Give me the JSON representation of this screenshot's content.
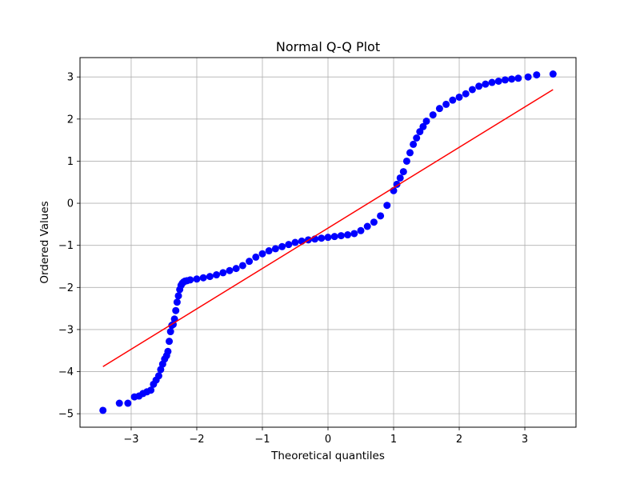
{
  "chart_data": {
    "type": "scatter",
    "title": "Normal Q-Q Plot",
    "xlabel": "Theoretical quantiles",
    "ylabel": "Ordered Values",
    "xlim": [
      -3.78,
      3.78
    ],
    "ylim": [
      -5.32,
      3.46
    ],
    "xticks": [
      -3,
      -2,
      -1,
      0,
      1,
      2,
      3
    ],
    "xtick_labels": [
      "−3",
      "−2",
      "−1",
      "0",
      "1",
      "2",
      "3"
    ],
    "yticks": [
      -5,
      -4,
      -3,
      -2,
      -1,
      0,
      1,
      2,
      3
    ],
    "ytick_labels": [
      "−5",
      "−4",
      "−3",
      "−2",
      "−1",
      "0",
      "1",
      "2",
      "3"
    ],
    "grid": true,
    "series": [
      {
        "kind": "points",
        "color": "#0000ff",
        "x": [
          -3.43,
          -3.18,
          -3.05,
          -2.95,
          -2.88,
          -2.82,
          -2.76,
          -2.7,
          -2.66,
          -2.62,
          -2.58,
          -2.55,
          -2.52,
          -2.49,
          -2.46,
          -2.44,
          -2.42,
          -2.4,
          -2.38,
          -2.36,
          -2.34,
          -2.32,
          -2.3,
          -2.28,
          -2.26,
          -2.24,
          -2.22,
          -2.2,
          -2.18,
          -2.15,
          -2.1,
          -2.0,
          -1.9,
          -1.8,
          -1.7,
          -1.6,
          -1.5,
          -1.4,
          -1.3,
          -1.2,
          -1.1,
          -1.0,
          -0.9,
          -0.8,
          -0.7,
          -0.6,
          -0.5,
          -0.4,
          -0.3,
          -0.2,
          -0.1,
          0.0,
          0.1,
          0.2,
          0.3,
          0.4,
          0.5,
          0.6,
          0.7,
          0.8,
          0.9,
          1.0,
          1.05,
          1.1,
          1.15,
          1.2,
          1.25,
          1.3,
          1.35,
          1.4,
          1.45,
          1.5,
          1.6,
          1.7,
          1.8,
          1.9,
          2.0,
          2.1,
          2.2,
          2.3,
          2.4,
          2.5,
          2.6,
          2.7,
          2.8,
          2.9,
          3.05,
          3.18,
          3.43
        ],
        "y": [
          -4.92,
          -4.75,
          -4.75,
          -4.6,
          -4.58,
          -4.52,
          -4.48,
          -4.44,
          -4.3,
          -4.2,
          -4.1,
          -3.95,
          -3.82,
          -3.7,
          -3.62,
          -3.52,
          -3.28,
          -3.05,
          -2.9,
          -2.88,
          -2.75,
          -2.55,
          -2.35,
          -2.2,
          -2.05,
          -1.95,
          -1.9,
          -1.87,
          -1.85,
          -1.84,
          -1.82,
          -1.8,
          -1.77,
          -1.74,
          -1.7,
          -1.65,
          -1.6,
          -1.55,
          -1.48,
          -1.38,
          -1.28,
          -1.2,
          -1.13,
          -1.08,
          -1.03,
          -0.98,
          -0.93,
          -0.9,
          -0.87,
          -0.85,
          -0.83,
          -0.81,
          -0.79,
          -0.77,
          -0.75,
          -0.72,
          -0.65,
          -0.55,
          -0.45,
          -0.3,
          -0.05,
          0.3,
          0.45,
          0.6,
          0.75,
          1.0,
          1.2,
          1.4,
          1.55,
          1.7,
          1.82,
          1.95,
          2.1,
          2.25,
          2.35,
          2.45,
          2.52,
          2.6,
          2.7,
          2.78,
          2.83,
          2.87,
          2.9,
          2.93,
          2.95,
          2.97,
          3.0,
          3.05,
          3.07
        ]
      },
      {
        "kind": "line",
        "color": "#ff0000",
        "x": [
          -3.43,
          3.43
        ],
        "y": [
          -3.88,
          2.7
        ]
      }
    ]
  },
  "colors": {
    "points": "#0000ff",
    "fit_line": "#ff0000",
    "grid": "#b0b0b0",
    "axes": "#000000"
  }
}
